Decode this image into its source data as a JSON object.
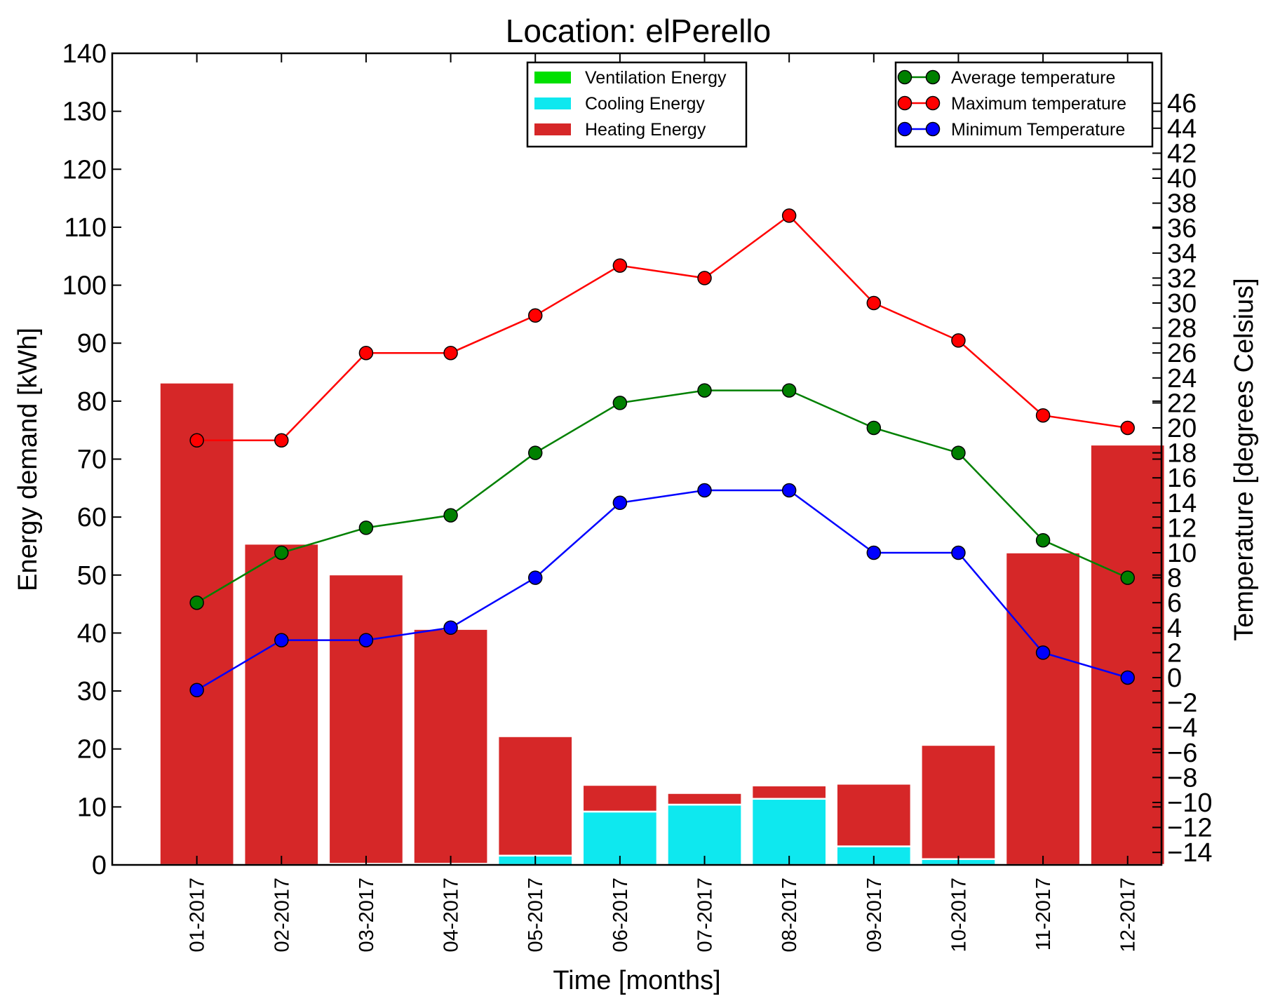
{
  "chart_data": {
    "type": "bar",
    "title": "Location: elPerello",
    "xlabel": "Time [months]",
    "ylabel": "Energy demand [kWh]",
    "y2label": "Temperature [degrees Celsius]",
    "categories": [
      "01-2017",
      "02-2017",
      "03-2017",
      "04-2017",
      "05-2017",
      "06-2017",
      "07-2017",
      "08-2017",
      "09-2017",
      "10-2017",
      "11-2017",
      "12-2017"
    ],
    "ylim": [
      0,
      140
    ],
    "yticks": [
      "0",
      "10",
      "20",
      "30",
      "40",
      "50",
      "60",
      "70",
      "80",
      "90",
      "100",
      "110",
      "120",
      "130",
      "140"
    ],
    "y2lim": [
      -15,
      50
    ],
    "y2ticks": [
      "−14",
      "−12",
      "−10",
      "−8",
      "−6",
      "−4",
      "−2",
      "0",
      "2",
      "4",
      "6",
      "8",
      "10",
      "12",
      "14",
      "16",
      "18",
      "20",
      "22",
      "24",
      "26",
      "28",
      "30",
      "32",
      "34",
      "36",
      "38",
      "40",
      "42",
      "44",
      "46"
    ],
    "stacked": true,
    "bar_series": [
      {
        "name": "Ventilation Energy",
        "color": "#00e000",
        "values": [
          0,
          0,
          0,
          0,
          0,
          0,
          0,
          0,
          0,
          0,
          0,
          0
        ]
      },
      {
        "name": "Cooling Energy",
        "color": "#0ee8ef",
        "values": [
          0,
          0,
          0.2,
          0.2,
          1.6,
          9.2,
          10.4,
          11.4,
          3.2,
          1.0,
          0,
          0
        ]
      },
      {
        "name": "Heating Energy",
        "color": "#d62728",
        "values": [
          83.2,
          55.4,
          49.9,
          40.5,
          20.6,
          4.6,
          2.0,
          2.3,
          10.8,
          19.7,
          53.9,
          72.5
        ]
      }
    ],
    "line_series": [
      {
        "name": "Average temperature",
        "color": "#008000",
        "axis": "right",
        "values": [
          6,
          10,
          12,
          13,
          18,
          22,
          23,
          23,
          20,
          18,
          11,
          8
        ]
      },
      {
        "name": "Maximum temperature",
        "color": "#ff0000",
        "axis": "right",
        "values": [
          19,
          19,
          26,
          26,
          29,
          33,
          32,
          37,
          30,
          27,
          21,
          20
        ]
      },
      {
        "name": "Minimum Temperature",
        "color": "#0000ff",
        "axis": "right",
        "values": [
          -1,
          3,
          3,
          4,
          8,
          14,
          15,
          15,
          10,
          10,
          2,
          0
        ]
      }
    ],
    "legend_left_position": "top-center",
    "legend_right_position": "top-right",
    "grid": false
  }
}
